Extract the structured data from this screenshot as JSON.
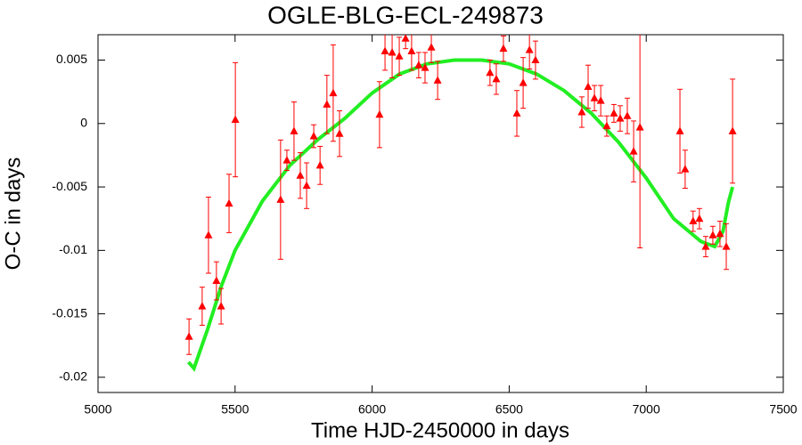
{
  "chart_data": {
    "type": "scatter",
    "title": "OGLE-BLG-ECL-249873",
    "x_label": "Time HJD-2450000 in days",
    "y_label": "O-C in days",
    "x": [
      5332,
      5380,
      5403,
      5432,
      5449,
      5478,
      5501,
      5666,
      5689,
      5715,
      5738,
      5761,
      5787,
      5810,
      5835,
      5858,
      5881,
      6027,
      6047,
      6073,
      6099,
      6122,
      6144,
      6170,
      6193,
      6216,
      6239,
      6430,
      6453,
      6479,
      6528,
      6551,
      6574,
      6596,
      6765,
      6788,
      6811,
      6834,
      6856,
      6882,
      6905,
      6931,
      6954,
      6977,
      7123,
      7142,
      7171,
      7194,
      7217,
      7243,
      7269,
      7292,
      7315
    ],
    "values": [
      -0.0168,
      -0.0144,
      -0.0088,
      -0.0124,
      -0.0144,
      -0.0063,
      0.0003,
      -0.006,
      -0.0029,
      -0.0006,
      -0.0041,
      -0.0049,
      -0.001,
      -0.0033,
      0.0015,
      0.0024,
      -0.0008,
      0.0007,
      0.0057,
      0.0056,
      0.0053,
      0.0067,
      0.0057,
      0.0046,
      0.0044,
      0.006,
      0.0034,
      0.004,
      0.0035,
      0.0059,
      0.0008,
      0.0032,
      0.0058,
      0.005,
      0.0009,
      0.0029,
      0.002,
      0.0018,
      -0.0002,
      0.0008,
      0.0004,
      0.0006,
      -0.0022,
      -0.0003,
      -0.0006,
      -0.0036,
      -0.0077,
      -0.0075,
      -0.0097,
      -0.0088,
      -0.0087,
      -0.0097,
      -0.0006
    ],
    "errors": [
      0.0014,
      0.0015,
      0.003,
      0.0015,
      0.0014,
      0.0023,
      0.0045,
      0.0047,
      0.0008,
      0.0023,
      0.0018,
      0.0018,
      0.0009,
      0.0015,
      0.0023,
      0.0038,
      0.0018,
      0.0026,
      0.0015,
      0.002,
      0.0015,
      0.0008,
      0.0015,
      0.001,
      0.0012,
      0.0012,
      0.0015,
      0.001,
      0.0012,
      0.001,
      0.0018,
      0.002,
      0.0015,
      0.0015,
      0.0012,
      0.0017,
      0.001,
      0.0012,
      0.0008,
      0.0007,
      0.001,
      0.0014,
      0.0024,
      0.0095,
      0.0033,
      0.0015,
      0.0008,
      0.0008,
      0.0008,
      0.0007,
      0.001,
      0.0018,
      0.0041
    ],
    "color": "#ff0000",
    "fit": {
      "x": [
        5330,
        5350,
        5400,
        5450,
        5500,
        5600,
        5700,
        5800,
        5900,
        6000,
        6100,
        6200,
        6300,
        6400,
        6500,
        6600,
        6700,
        6800,
        6900,
        7000,
        7100,
        7200,
        7250,
        7280,
        7300,
        7315
      ],
      "values": [
        -0.0188,
        -0.0193,
        -0.0162,
        -0.0128,
        -0.01,
        -0.0061,
        -0.0033,
        -0.0013,
        0.0004,
        0.0024,
        0.0039,
        0.0047,
        0.005,
        0.005,
        0.0047,
        0.0039,
        0.0026,
        0.0008,
        -0.0015,
        -0.0043,
        -0.0075,
        -0.0093,
        -0.0097,
        -0.0085,
        -0.0062,
        -0.005
      ],
      "color": "#22ee22"
    },
    "xlim": [
      5000,
      7500
    ],
    "xticks": [
      5000,
      5500,
      6000,
      6500,
      7000,
      7500
    ],
    "ylim": [
      -0.0212,
      0.007
    ],
    "yticks": [
      -0.02,
      -0.015,
      -0.01,
      -0.005,
      0,
      0.005
    ]
  }
}
